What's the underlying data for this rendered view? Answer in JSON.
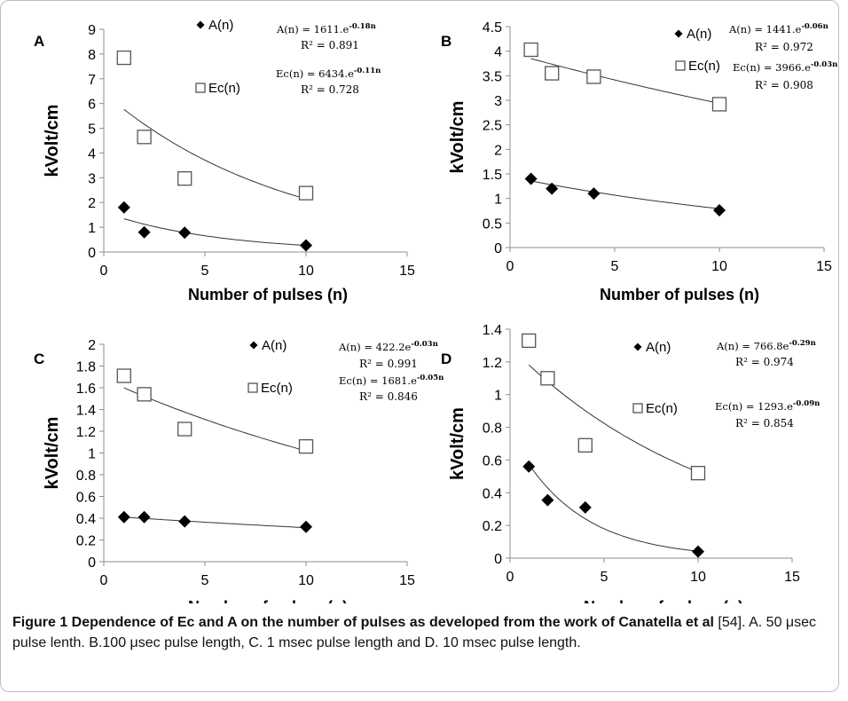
{
  "chart_data": [
    {
      "type": "scatter",
      "panel_label": "A",
      "xlabel": "Number of pulses (n)",
      "ylabel": "kVolt/cm",
      "xlim": [
        0,
        15
      ],
      "ylim": [
        0,
        9
      ],
      "xticks": [
        "0",
        "5",
        "10",
        "15"
      ],
      "yticks": [
        "0",
        "1",
        "2",
        "3",
        "4",
        "5",
        "6",
        "7",
        "8",
        "9"
      ],
      "grid": false,
      "series": [
        {
          "name": "A(n)",
          "marker": "diamond-filled",
          "x": [
            1,
            2,
            4,
            10
          ],
          "y": [
            1.8,
            0.8,
            0.78,
            0.27
          ],
          "fit": {
            "a": 1.611,
            "b": -0.18,
            "equation": "A(n) = 1611.e",
            "exponent": "-0.18n",
            "r2": "R² = 0.891"
          }
        },
        {
          "name": "Ec(n)",
          "marker": "square-open",
          "x": [
            1,
            2,
            4,
            10
          ],
          "y": [
            7.85,
            4.65,
            2.97,
            2.38
          ],
          "fit": {
            "a": 6.434,
            "b": -0.11,
            "equation": "Ec(n) = 6434.e",
            "exponent": "-0.11n",
            "r2": "R² = 0.728"
          }
        }
      ]
    },
    {
      "type": "scatter",
      "panel_label": "B",
      "xlabel": "Number of pulses (n)",
      "ylabel": "kVolt/cm",
      "xlim": [
        0,
        15
      ],
      "ylim": [
        0,
        4.5
      ],
      "xticks": [
        "0",
        "5",
        "10",
        "15"
      ],
      "yticks": [
        "0",
        "0.5",
        "1",
        "1.5",
        "2",
        "2.5",
        "3",
        "3.5",
        "4",
        "4.5"
      ],
      "grid": false,
      "series": [
        {
          "name": "A(n)",
          "marker": "diamond-filled",
          "x": [
            1,
            2,
            4,
            10
          ],
          "y": [
            1.4,
            1.2,
            1.1,
            0.76
          ],
          "fit": {
            "a": 1.441,
            "b": -0.06,
            "equation": "A(n) = 1441.e",
            "exponent": "-0.06n",
            "r2": "R² = 0.972"
          }
        },
        {
          "name": "Ec(n)",
          "marker": "square-open",
          "x": [
            1,
            2,
            4,
            10
          ],
          "y": [
            4.03,
            3.55,
            3.48,
            2.92
          ],
          "fit": {
            "a": 3.966,
            "b": -0.03,
            "equation": "Ec(n) = 3966.e",
            "exponent": "-0.03n",
            "r2": "R² = 0.908"
          }
        }
      ]
    },
    {
      "type": "scatter",
      "panel_label": "C",
      "xlabel": "Number of pulses (n)",
      "ylabel": "kVolt/cm",
      "xlim": [
        0,
        15
      ],
      "ylim": [
        0,
        2
      ],
      "xticks": [
        "0",
        "5",
        "10",
        "15"
      ],
      "yticks": [
        "0",
        "0.2",
        "0.4",
        "0.6",
        "0.8",
        "1",
        "1.2",
        "1.4",
        "1.6",
        "1.8",
        "2"
      ],
      "grid": false,
      "series": [
        {
          "name": "A(n)",
          "marker": "diamond-filled",
          "x": [
            1,
            2,
            4,
            10
          ],
          "y": [
            0.41,
            0.41,
            0.37,
            0.32
          ],
          "fit": {
            "a": 0.4222,
            "b": -0.03,
            "equation": "A(n) = 422.2e",
            "exponent": "-0.03n",
            "r2": "R² = 0.991"
          }
        },
        {
          "name": "Ec(n)",
          "marker": "square-open",
          "x": [
            1,
            2,
            4,
            10
          ],
          "y": [
            1.71,
            1.54,
            1.22,
            1.06
          ],
          "fit": {
            "a": 1.681,
            "b": -0.05,
            "equation": "Ec(n) = 1681.e",
            "exponent": "-0.05n",
            "r2": "R² = 0.846"
          }
        }
      ]
    },
    {
      "type": "scatter",
      "panel_label": "D",
      "xlabel": "Number of pulses (n)",
      "ylabel": "kVolt/cm",
      "xlim": [
        0,
        15
      ],
      "ylim": [
        0,
        1.4
      ],
      "xticks": [
        "0",
        "5",
        "10",
        "15"
      ],
      "yticks": [
        "0",
        "0.2",
        "0.4",
        "0.6",
        "0.8",
        "1",
        "1.2",
        "1.4"
      ],
      "grid": false,
      "series": [
        {
          "name": "A(n)",
          "marker": "diamond-filled",
          "x": [
            1,
            2,
            4,
            10
          ],
          "y": [
            0.56,
            0.355,
            0.31,
            0.04
          ],
          "fit": {
            "a": 0.7668,
            "b": -0.29,
            "equation": "A(n) = 766.8e",
            "exponent": "-0.29n",
            "r2": "R² = 0.974"
          }
        },
        {
          "name": "Ec(n)",
          "marker": "square-open",
          "x": [
            1,
            2,
            4,
            10
          ],
          "y": [
            1.33,
            1.1,
            0.69,
            0.52
          ],
          "fit": {
            "a": 1.293,
            "b": -0.09,
            "equation": "Ec(n) = 1293.e",
            "exponent": "-0.09n",
            "r2": "R² = 0.854"
          }
        }
      ]
    }
  ],
  "caption": {
    "bold": "Figure 1 Dependence of Ec and A on the number of pulses as developed from the work of Canatella et al",
    "text": " [54]. A. 50 μsec pulse lenth. B.100 μsec pulse length, C. 1 msec pulse length and D. 10 msec pulse length."
  },
  "colors": {
    "axis": "#8c8c8c",
    "marker": "#000000",
    "fit_line": "#333333",
    "text": "#000000"
  }
}
